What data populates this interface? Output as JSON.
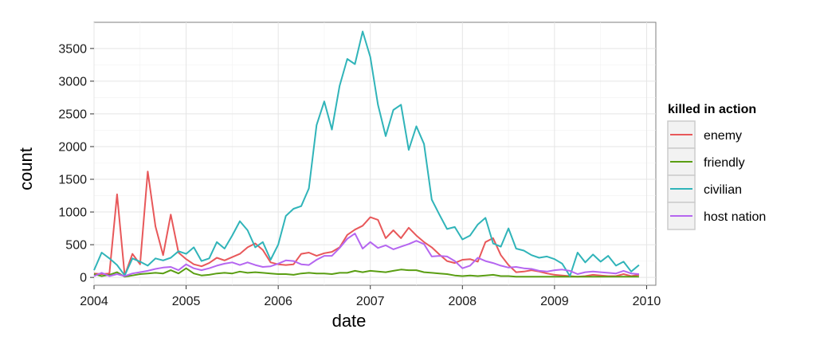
{
  "chart_data": {
    "type": "line",
    "xlabel": "date",
    "ylabel": "count",
    "xlim": [
      2004.0,
      2010.1
    ],
    "ylim": [
      -120,
      3900
    ],
    "x_ticks": [
      2004,
      2005,
      2006,
      2007,
      2008,
      2009,
      2010
    ],
    "y_ticks": [
      0,
      500,
      1000,
      1500,
      2000,
      2500,
      3000,
      3500
    ],
    "grid": true,
    "legend": {
      "title": "killed in action",
      "placement": "right",
      "entries": [
        "enemy",
        "friendly",
        "civilian",
        "host nation"
      ]
    },
    "x": [
      2004.0,
      2004.083,
      2004.167,
      2004.25,
      2004.333,
      2004.417,
      2004.5,
      2004.583,
      2004.667,
      2004.75,
      2004.833,
      2004.917,
      2005.0,
      2005.083,
      2005.167,
      2005.25,
      2005.333,
      2005.417,
      2005.5,
      2005.583,
      2005.667,
      2005.75,
      2005.833,
      2005.917,
      2006.0,
      2006.083,
      2006.167,
      2006.25,
      2006.333,
      2006.417,
      2006.5,
      2006.583,
      2006.667,
      2006.75,
      2006.833,
      2006.917,
      2007.0,
      2007.083,
      2007.167,
      2007.25,
      2007.333,
      2007.417,
      2007.5,
      2007.583,
      2007.667,
      2007.75,
      2007.833,
      2007.917,
      2008.0,
      2008.083,
      2008.167,
      2008.25,
      2008.333,
      2008.417,
      2008.5,
      2008.583,
      2008.667,
      2008.75,
      2008.833,
      2008.917,
      2009.0,
      2009.083,
      2009.167,
      2009.25,
      2009.333,
      2009.417,
      2009.5,
      2009.583,
      2009.667,
      2009.75,
      2009.833,
      2009.917
    ],
    "series": [
      {
        "name": "enemy",
        "color": "#e8585a",
        "values": [
          60,
          50,
          60,
          1270,
          30,
          360,
          200,
          1620,
          780,
          340,
          960,
          380,
          280,
          200,
          170,
          220,
          300,
          260,
          310,
          360,
          460,
          520,
          420,
          230,
          200,
          190,
          200,
          360,
          380,
          330,
          370,
          390,
          460,
          650,
          730,
          790,
          920,
          880,
          600,
          720,
          600,
          760,
          640,
          540,
          460,
          350,
          250,
          220,
          270,
          280,
          240,
          540,
          600,
          340,
          190,
          80,
          90,
          110,
          90,
          60,
          40,
          30,
          20,
          10,
          20,
          40,
          30,
          20,
          20,
          50,
          20,
          40
        ]
      },
      {
        "name": "friendly",
        "color": "#5a9e13",
        "values": [
          50,
          20,
          40,
          80,
          10,
          30,
          50,
          60,
          70,
          60,
          110,
          60,
          140,
          60,
          30,
          40,
          60,
          70,
          60,
          90,
          70,
          80,
          70,
          60,
          50,
          50,
          40,
          60,
          70,
          60,
          60,
          50,
          70,
          70,
          100,
          80,
          100,
          90,
          80,
          100,
          120,
          110,
          110,
          80,
          70,
          60,
          50,
          30,
          20,
          30,
          20,
          30,
          40,
          20,
          20,
          10,
          10,
          10,
          10,
          10,
          10,
          10,
          10,
          10,
          10,
          10,
          10,
          10,
          10,
          10,
          10,
          10
        ]
      },
      {
        "name": "civilian",
        "color": "#30b4b9",
        "values": [
          110,
          380,
          290,
          190,
          30,
          290,
          240,
          180,
          290,
          260,
          300,
          400,
          360,
          460,
          250,
          290,
          540,
          440,
          640,
          860,
          720,
          460,
          540,
          270,
          500,
          940,
          1050,
          1090,
          1360,
          2330,
          2690,
          2260,
          2930,
          3340,
          3260,
          3760,
          3370,
          2640,
          2160,
          2560,
          2640,
          1950,
          2310,
          2040,
          1190,
          960,
          740,
          770,
          580,
          640,
          810,
          910,
          520,
          470,
          750,
          440,
          410,
          340,
          300,
          320,
          280,
          210,
          20,
          380,
          230,
          350,
          240,
          330,
          180,
          240,
          90,
          190
        ]
      },
      {
        "name": "host nation",
        "color": "#b566f0",
        "values": [
          20,
          70,
          20,
          50,
          20,
          60,
          80,
          100,
          130,
          150,
          160,
          110,
          200,
          140,
          110,
          140,
          180,
          210,
          230,
          190,
          230,
          190,
          160,
          170,
          210,
          260,
          250,
          200,
          190,
          270,
          330,
          330,
          450,
          590,
          670,
          440,
          540,
          450,
          490,
          430,
          470,
          510,
          560,
          510,
          320,
          330,
          320,
          250,
          140,
          180,
          300,
          250,
          220,
          180,
          150,
          160,
          140,
          130,
          100,
          90,
          110,
          120,
          100,
          50,
          80,
          90,
          80,
          70,
          60,
          100,
          60,
          50
        ]
      }
    ]
  }
}
